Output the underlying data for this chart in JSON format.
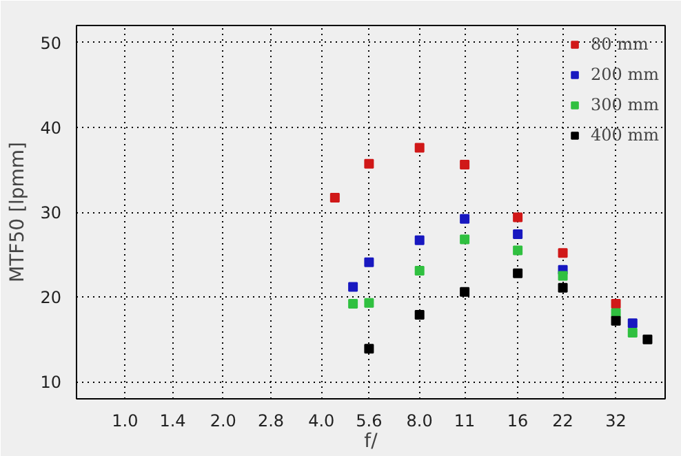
{
  "chart_data": {
    "type": "scatter",
    "xlabel": "f/",
    "ylabel": "MTF50 [lpmm]",
    "log": "x",
    "marker": "square",
    "grid": true,
    "legend": "top right",
    "xlim": [
      0.71,
      45.3
    ],
    "ylim": [
      8,
      52
    ],
    "xticks": [
      {
        "value": 1,
        "label": "1.0"
      },
      1.4,
      {
        "value": 2,
        "label": "2.0"
      },
      2.8,
      {
        "value": 4,
        "label": "4.0"
      },
      5.6,
      {
        "value": 8,
        "label": "8.0"
      },
      11,
      16,
      22,
      32
    ],
    "yticks": [
      10,
      20,
      30,
      40,
      50
    ],
    "series": [
      {
        "name": "80 mm",
        "color": "#d01818",
        "x": [
          4.4,
          5.6,
          8,
          11,
          16,
          22,
          32
        ],
        "values": [
          31.7,
          35.7,
          37.6,
          35.6,
          29.4,
          25.2,
          19.2
        ]
      },
      {
        "name": "200 mm",
        "color": "#1818c0",
        "x": [
          5,
          5.6,
          8,
          11,
          16,
          22,
          32,
          36
        ],
        "values": [
          21.2,
          24.1,
          26.7,
          29.2,
          27.4,
          23.2,
          null,
          16.9
        ]
      },
      {
        "name": "300 mm",
        "color": "#30c040",
        "x": [
          5,
          5.6,
          8,
          11,
          16,
          22,
          32,
          36
        ],
        "values": [
          19.2,
          19.3,
          23.1,
          26.8,
          25.5,
          22.5,
          18.1,
          15.8
        ]
      },
      {
        "name": "400 mm",
        "color": "#000000",
        "x": [
          5.6,
          8,
          11,
          16,
          22,
          32,
          40
        ],
        "values": [
          13.9,
          17.9,
          20.6,
          22.8,
          21.1,
          17.2,
          15.0
        ]
      }
    ]
  }
}
